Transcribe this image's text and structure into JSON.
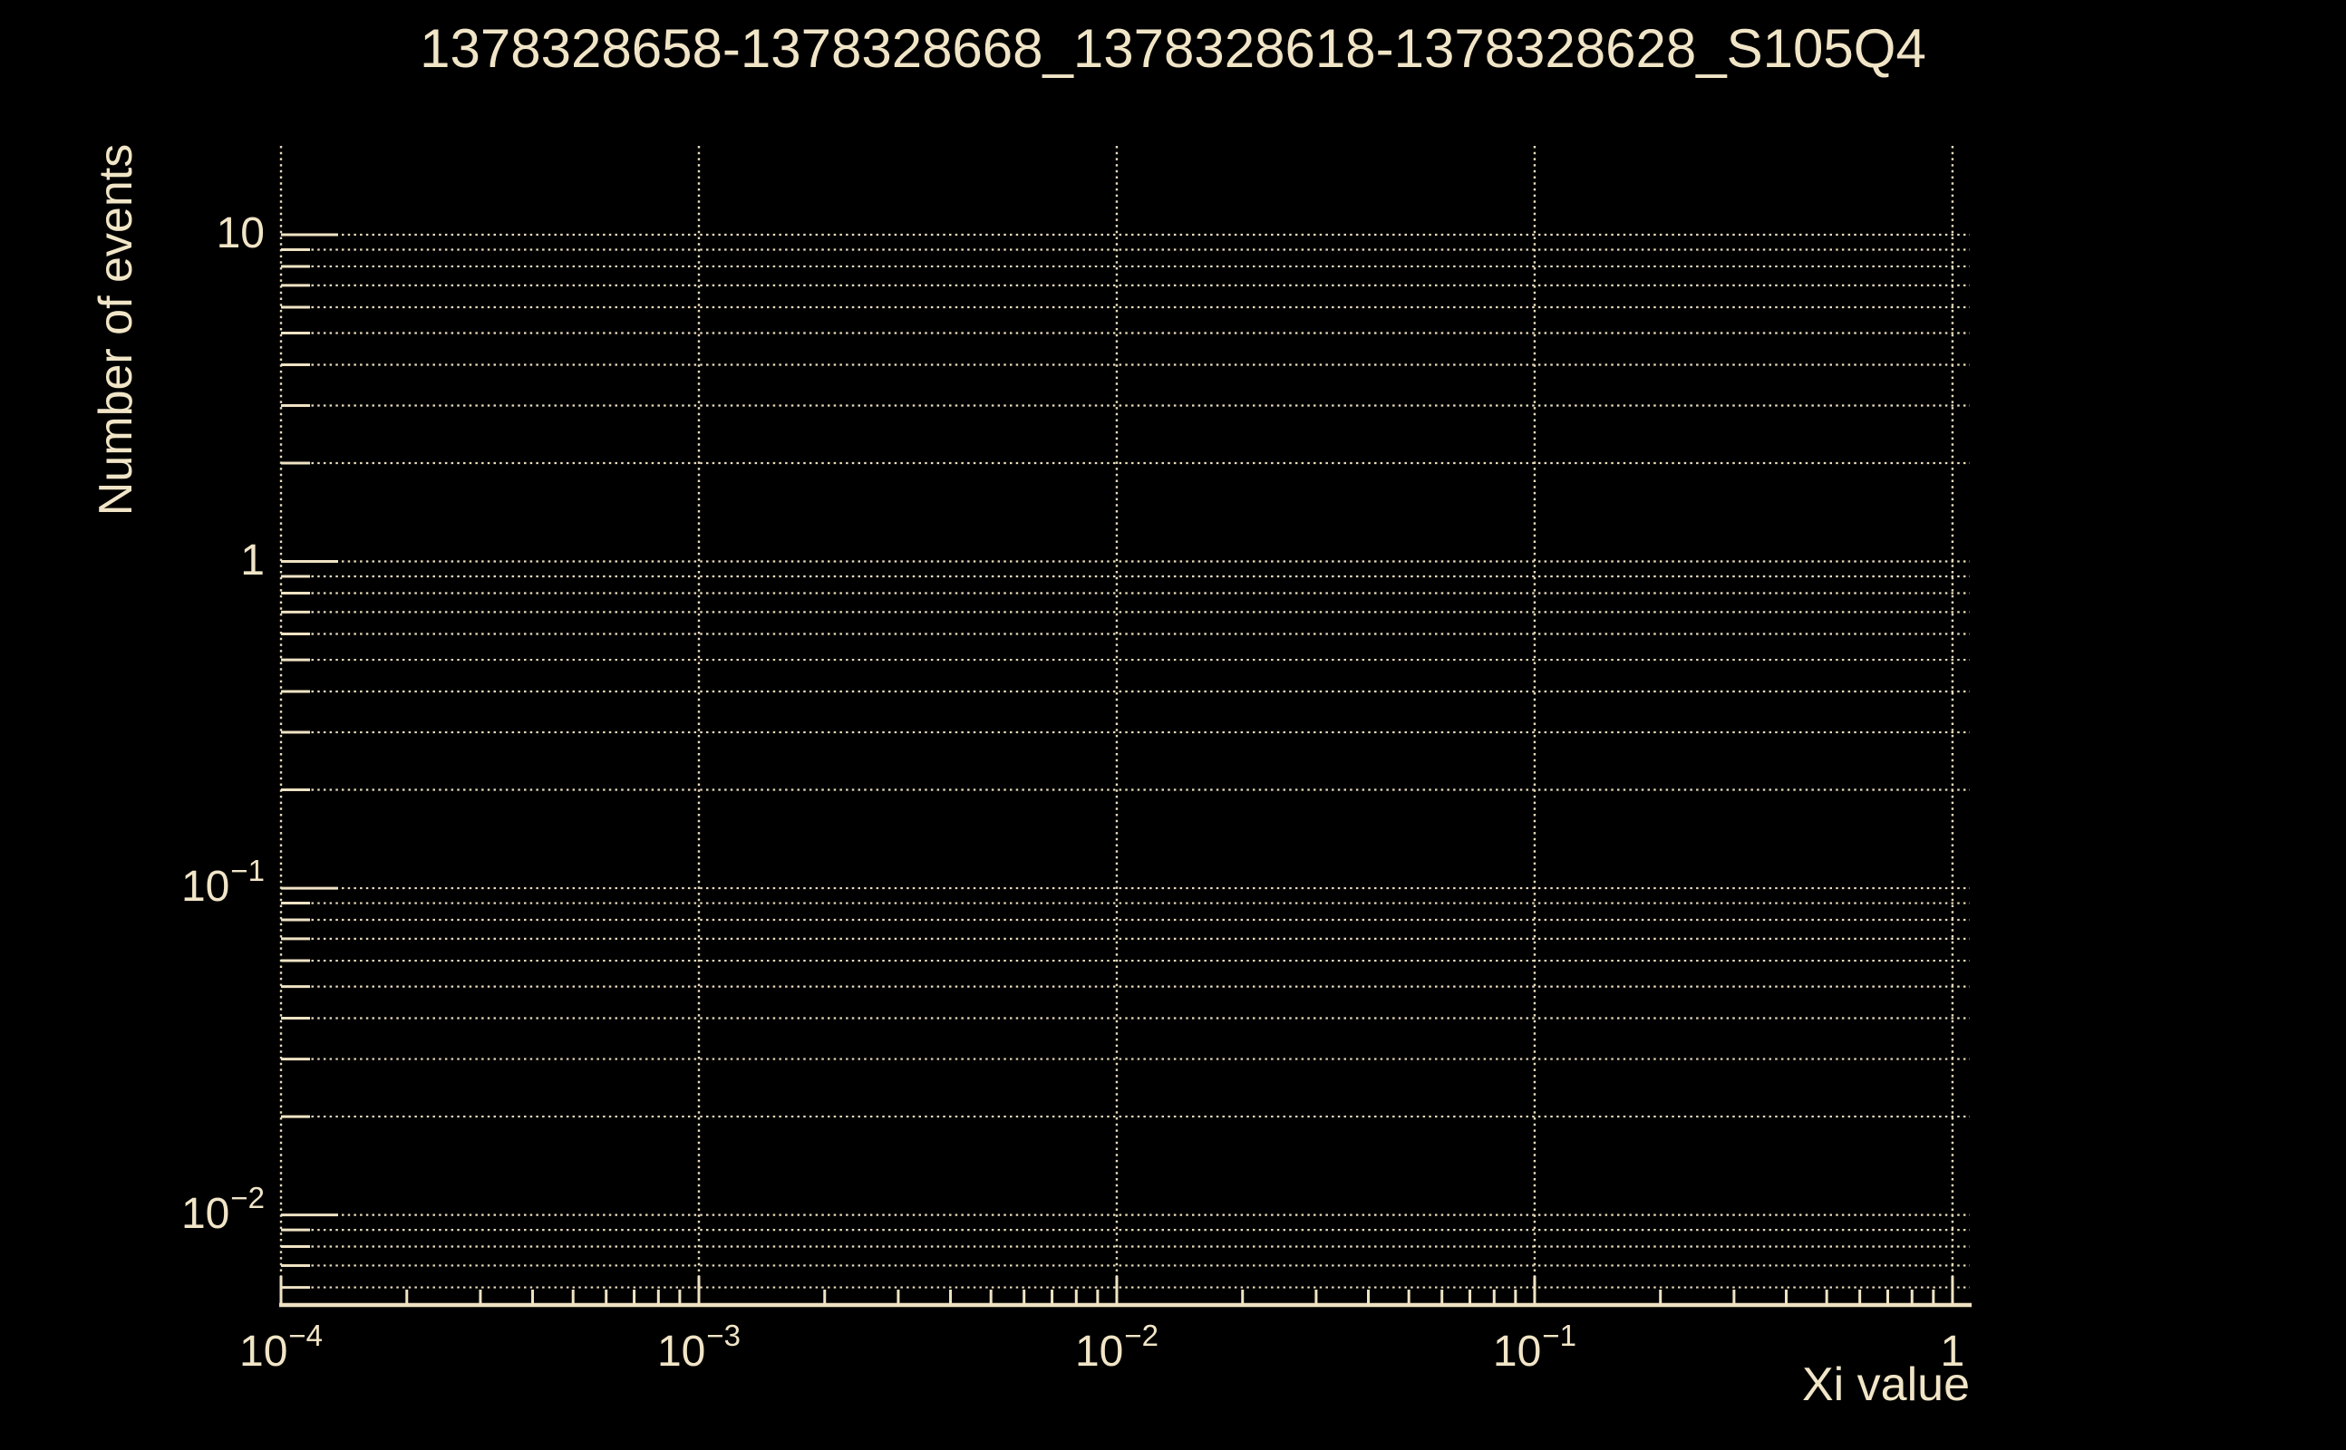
{
  "page": {
    "background_color": "#000000",
    "foreground_color": "#F1E5C7",
    "grid_color": "#E9DDBD",
    "axis_color": "#EFE3C4"
  },
  "chart_data": {
    "type": "line",
    "title": "1378328658-1378328668_1378328618-1378328628_S105Q4",
    "xlabel": "Xi value",
    "ylabel": "Number of events",
    "xscale": "log",
    "yscale": "log",
    "xlim": [
      0.0001,
      1.1
    ],
    "ylim": [
      0.0053,
      18.7
    ],
    "grid": true,
    "legend_position": "none",
    "series": [],
    "x_ticks": [
      {
        "value": 0.0001,
        "base": "10",
        "exp": "−4"
      },
      {
        "value": 0.001,
        "base": "10",
        "exp": "−3"
      },
      {
        "value": 0.01,
        "base": "10",
        "exp": "−2"
      },
      {
        "value": 0.1,
        "base": "10",
        "exp": "−1"
      },
      {
        "value": 1,
        "base": "1",
        "exp": ""
      }
    ],
    "y_ticks": [
      {
        "value": 10,
        "base": "10",
        "exp": ""
      },
      {
        "value": 1,
        "base": "1",
        "exp": ""
      },
      {
        "value": 0.1,
        "base": "10",
        "exp": "−1"
      },
      {
        "value": 0.01,
        "base": "10",
        "exp": "−2"
      }
    ]
  }
}
